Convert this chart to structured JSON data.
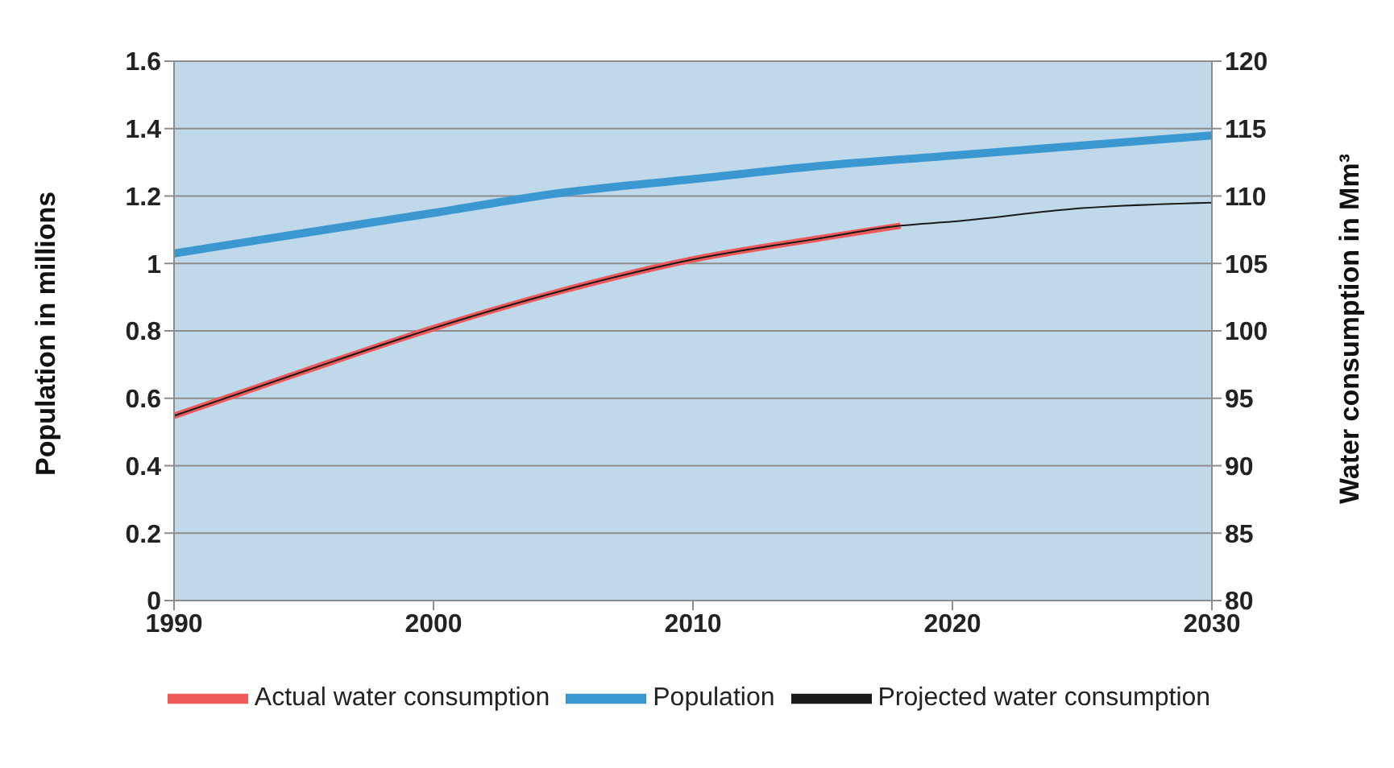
{
  "chart_data": {
    "type": "line",
    "ylabel": "Population in millions",
    "y2label": "Water consumption in Mm³",
    "xlim": [
      1990,
      2030
    ],
    "xticks": [
      1990,
      2000,
      2010,
      2020,
      2030
    ],
    "ylim": [
      0,
      1.6
    ],
    "yticks": [
      0,
      0.2,
      0.4,
      0.6,
      0.8,
      1,
      1.2,
      1.4,
      1.6
    ],
    "y2lim": [
      80,
      120
    ],
    "y2ticks": [
      80,
      85,
      90,
      95,
      100,
      105,
      110,
      115,
      120
    ],
    "grid": "y",
    "legend": "bottom",
    "marker": "none",
    "line_style": "solid",
    "series": [
      {
        "name": "Population",
        "color": "#3a97cf",
        "x": [
          1990,
          1995,
          2000,
          2005,
          2010,
          2015,
          2020,
          2025,
          2030
        ],
        "values": [
          1.03,
          1.09,
          1.15,
          1.21,
          1.25,
          1.29,
          1.32,
          1.35,
          1.38
        ]
      },
      {
        "name": "Actual water consumption",
        "color": "#f0595a",
        "axis": "y2",
        "x": [
          1990,
          1995,
          2000,
          2005,
          2010,
          2015,
          2018
        ],
        "values": [
          93.7,
          97,
          100.2,
          103,
          105.3,
          106.9,
          107.8
        ]
      },
      {
        "name": "Projected water consumption",
        "color": "#1a1a1a",
        "axis": "y2",
        "x": [
          1990,
          1995,
          2000,
          2005,
          2010,
          2015,
          2018,
          2020,
          2025,
          2030
        ],
        "values": [
          93.7,
          97,
          100.2,
          103,
          105.3,
          106.9,
          107.8,
          108.1,
          109.1,
          109.5
        ]
      }
    ]
  }
}
